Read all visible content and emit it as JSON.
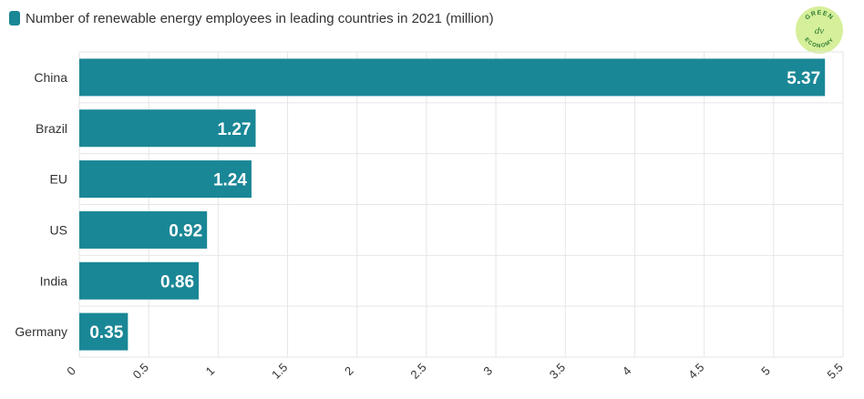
{
  "legend": {
    "label": "Number of renewable energy employees in leading countries in 2021 (million)"
  },
  "logo": {
    "text_top": "GREEN",
    "text_bottom": "ECONOMY",
    "monogram": "dv"
  },
  "colors": {
    "bar": "#1a8796",
    "grid": "#e6e6e6",
    "label": "#333333",
    "value_label": "#ffffff",
    "logo_fill": "#d6ef9a",
    "logo_text": "#2e7d32"
  },
  "chart_data": {
    "type": "bar",
    "orientation": "horizontal",
    "title": "Number of renewable energy employees in leading countries in 2021 (million)",
    "categories": [
      "China",
      "Brazil",
      "EU",
      "US",
      "India",
      "Germany"
    ],
    "series": [
      {
        "name": "Number of renewable energy employees in leading countries in 2021 (million)",
        "values": [
          5.37,
          1.27,
          1.24,
          0.92,
          0.86,
          0.35
        ]
      }
    ],
    "xlim": [
      0,
      5.5
    ],
    "xticks": [
      "0",
      "0.5",
      "1",
      "1.5",
      "2",
      "2.5",
      "3",
      "3.5",
      "4",
      "4.5",
      "5",
      "5.5"
    ],
    "tick_rotation": -45,
    "grid": true,
    "legend_position": "top-left",
    "data_labels": true
  }
}
